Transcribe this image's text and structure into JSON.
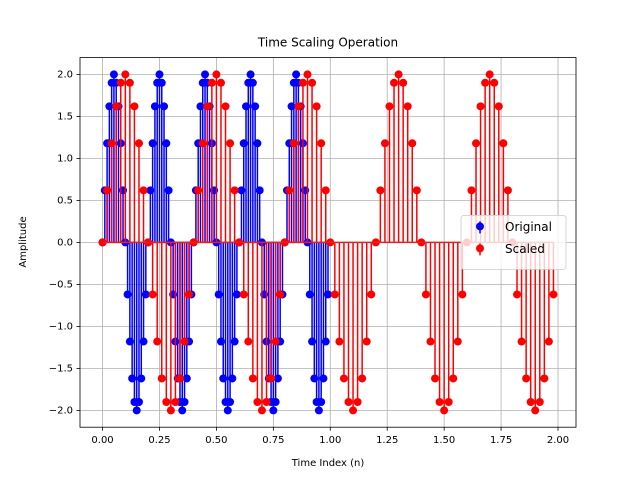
{
  "chart_data": {
    "type": "stem",
    "title": "Time Scaling Operation",
    "x_label": "Time Index (n)",
    "y_label": "Amplitude",
    "xlim": [
      -0.099,
      2.079
    ],
    "ylim": [
      -2.2,
      2.2
    ],
    "xticks": [
      {
        "value": 0,
        "label": "0.00"
      },
      {
        "value": 0.25,
        "label": "0.25"
      },
      {
        "value": 0.5,
        "label": "0.50"
      },
      {
        "value": 0.75,
        "label": "0.75"
      },
      {
        "value": 1,
        "label": "1.00"
      },
      {
        "value": 1.25,
        "label": "1.25"
      },
      {
        "value": 1.5,
        "label": "1.50"
      },
      {
        "value": 1.75,
        "label": "1.75"
      },
      {
        "value": 2,
        "label": "2.00"
      }
    ],
    "yticks": [
      {
        "value": -2,
        "label": "−2.0"
      },
      {
        "value": -1.5,
        "label": "−1.5"
      },
      {
        "value": -1,
        "label": "−1.0"
      },
      {
        "value": -0.5,
        "label": "−0.5"
      },
      {
        "value": 0,
        "label": "0.0"
      },
      {
        "value": 0.5,
        "label": "0.5"
      },
      {
        "value": 1,
        "label": "1.0"
      },
      {
        "value": 1.5,
        "label": "1.5"
      },
      {
        "value": 2,
        "label": "2.0"
      }
    ],
    "grid": true,
    "legend": "center right",
    "series": [
      {
        "name": "Original",
        "color": "#0000ff",
        "x": [
          0,
          0.01,
          0.02,
          0.03,
          0.04,
          0.05,
          0.06,
          0.07,
          0.08,
          0.09,
          0.1,
          0.11,
          0.12,
          0.13,
          0.14,
          0.15,
          0.16,
          0.17,
          0.18,
          0.19,
          0.2,
          0.21,
          0.22,
          0.23,
          0.24,
          0.25,
          0.26,
          0.27,
          0.28,
          0.29,
          0.3,
          0.31,
          0.32,
          0.33,
          0.34,
          0.35,
          0.36,
          0.37,
          0.38,
          0.39,
          0.4,
          0.41,
          0.42,
          0.43,
          0.44,
          0.45,
          0.46,
          0.47,
          0.48,
          0.49,
          0.5,
          0.51,
          0.52,
          0.53,
          0.54,
          0.55,
          0.56,
          0.57,
          0.58,
          0.59,
          0.6,
          0.61,
          0.62,
          0.63,
          0.64,
          0.65,
          0.66,
          0.67,
          0.68,
          0.69,
          0.7,
          0.71,
          0.72,
          0.73,
          0.74,
          0.75,
          0.76,
          0.77,
          0.78,
          0.79,
          0.8,
          0.81,
          0.82,
          0.83,
          0.84,
          0.85,
          0.86,
          0.87,
          0.88,
          0.89,
          0.9,
          0.91,
          0.92,
          0.93,
          0.94,
          0.95,
          0.96,
          0.97,
          0.98,
          0.99
        ],
        "values": [
          0,
          0.62,
          1.18,
          1.62,
          1.9,
          2,
          1.9,
          1.62,
          1.18,
          0.62,
          0,
          -0.62,
          -1.18,
          -1.62,
          -1.9,
          -2,
          -1.9,
          -1.62,
          -1.18,
          -0.62,
          0,
          0.62,
          1.18,
          1.62,
          1.9,
          2,
          1.9,
          1.62,
          1.18,
          0.62,
          0,
          -0.62,
          -1.18,
          -1.62,
          -1.9,
          -2,
          -1.9,
          -1.62,
          -1.18,
          -0.62,
          0,
          0.62,
          1.18,
          1.62,
          1.9,
          2,
          1.9,
          1.62,
          1.18,
          0.62,
          0,
          -0.62,
          -1.18,
          -1.62,
          -1.9,
          -2,
          -1.9,
          -1.62,
          -1.18,
          -0.62,
          0,
          0.62,
          1.18,
          1.62,
          1.9,
          2,
          1.9,
          1.62,
          1.18,
          0.62,
          0,
          -0.62,
          -1.18,
          -1.62,
          -1.9,
          -2,
          -1.9,
          -1.62,
          -1.18,
          -0.62,
          0,
          0.62,
          1.18,
          1.62,
          1.9,
          2,
          1.9,
          1.62,
          1.18,
          0.62,
          0,
          -0.62,
          -1.18,
          -1.62,
          -1.9,
          -2,
          -1.9,
          -1.62,
          -1.18,
          -0.62
        ]
      },
      {
        "name": "Scaled",
        "color": "#ff0000",
        "x": [
          0,
          0.02,
          0.04,
          0.06,
          0.08,
          0.1,
          0.12,
          0.14,
          0.16,
          0.18,
          0.2,
          0.22,
          0.24,
          0.26,
          0.28,
          0.3,
          0.32,
          0.34,
          0.36,
          0.38,
          0.4,
          0.42,
          0.44,
          0.46,
          0.48,
          0.5,
          0.52,
          0.54,
          0.56,
          0.58,
          0.6,
          0.62,
          0.64,
          0.66,
          0.68,
          0.7,
          0.72,
          0.74,
          0.76,
          0.78,
          0.8,
          0.82,
          0.84,
          0.86,
          0.88,
          0.9,
          0.92,
          0.94,
          0.96,
          0.98,
          1,
          1.02,
          1.04,
          1.06,
          1.08,
          1.1,
          1.12,
          1.14,
          1.16,
          1.18,
          1.2,
          1.22,
          1.24,
          1.26,
          1.28,
          1.3,
          1.32,
          1.34,
          1.36,
          1.38,
          1.4,
          1.42,
          1.44,
          1.46,
          1.48,
          1.5,
          1.52,
          1.54,
          1.56,
          1.58,
          1.6,
          1.62,
          1.64,
          1.66,
          1.68,
          1.7,
          1.72,
          1.74,
          1.76,
          1.78,
          1.8,
          1.82,
          1.84,
          1.86,
          1.88,
          1.9,
          1.92,
          1.94,
          1.96,
          1.98
        ],
        "values": [
          0,
          0.62,
          1.18,
          1.62,
          1.9,
          2,
          1.9,
          1.62,
          1.18,
          0.62,
          0,
          -0.62,
          -1.18,
          -1.62,
          -1.9,
          -2,
          -1.9,
          -1.62,
          -1.18,
          -0.62,
          0,
          0.62,
          1.18,
          1.62,
          1.9,
          2,
          1.9,
          1.62,
          1.18,
          0.62,
          0,
          -0.62,
          -1.18,
          -1.62,
          -1.9,
          -2,
          -1.9,
          -1.62,
          -1.18,
          -0.62,
          0,
          0.62,
          1.18,
          1.62,
          1.9,
          2,
          1.9,
          1.62,
          1.18,
          0.62,
          0,
          -0.62,
          -1.18,
          -1.62,
          -1.9,
          -2,
          -1.9,
          -1.62,
          -1.18,
          -0.62,
          0,
          0.62,
          1.18,
          1.62,
          1.9,
          2,
          1.9,
          1.62,
          1.18,
          0.62,
          0,
          -0.62,
          -1.18,
          -1.62,
          -1.9,
          -2,
          -1.9,
          -1.62,
          -1.18,
          -0.62,
          0,
          0.62,
          1.18,
          1.62,
          1.9,
          2,
          1.9,
          1.62,
          1.18,
          0.62,
          0,
          -0.62,
          -1.18,
          -1.62,
          -1.9,
          -2,
          -1.9,
          -1.62,
          -1.18,
          -0.62
        ]
      }
    ]
  }
}
